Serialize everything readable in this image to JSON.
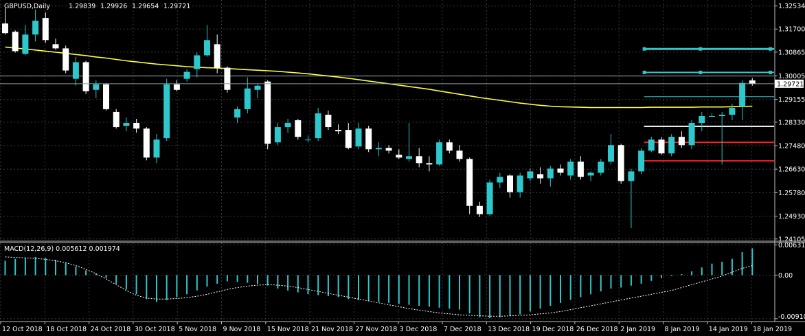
{
  "chart_data": [
    {
      "type": "candlestick",
      "title": "GBPUSD,Daily",
      "quote": [
        "1.29839",
        "1.29926",
        "1.29654",
        "1.29721"
      ],
      "current_price": 1.29721,
      "current_price_label": "1.29721",
      "y_ticks": [
        1.32534,
        1.317,
        1.30865,
        1.30005,
        1.29155,
        1.2833,
        1.2748,
        1.2663,
        1.2578,
        1.2493,
        1.24105
      ],
      "y_tick_labels": [
        "1.32534",
        "1.31700",
        "1.30865",
        "1.30005",
        "1.29155",
        "1.28330",
        "1.27480",
        "1.26630",
        "1.25780",
        "1.24930",
        "1.24105"
      ],
      "ylim": [
        1.2405,
        1.3275
      ],
      "grid": true,
      "colors": {
        "bull": "#2cc8cc",
        "bear": "#ffffff",
        "ma": "#ffff40",
        "axis": "#c0c0c0",
        "grid": "#3a3a3a"
      },
      "ohlc": [
        [
          1.319,
          1.3245,
          1.315,
          1.3155
        ],
        [
          1.316,
          1.3165,
          1.3085,
          1.309
        ],
        [
          1.308,
          1.3185,
          1.3075,
          1.315
        ],
        [
          1.315,
          1.324,
          1.3125,
          1.32
        ],
        [
          1.321,
          1.323,
          1.312,
          1.313
        ],
        [
          1.3115,
          1.3135,
          1.3095,
          1.31
        ],
        [
          1.31,
          1.311,
          1.301,
          1.302
        ],
        [
          1.299,
          1.307,
          1.2965,
          1.305
        ],
        [
          1.305,
          1.3055,
          1.2935,
          1.2945
        ],
        [
          1.295,
          1.2985,
          1.292,
          1.297
        ],
        [
          1.297,
          1.2975,
          1.2875,
          1.288
        ],
        [
          1.287,
          1.288,
          1.281,
          1.2815
        ],
        [
          1.282,
          1.285,
          1.28,
          1.283
        ],
        [
          1.283,
          1.2845,
          1.2795,
          1.281
        ],
        [
          1.281,
          1.2815,
          1.2695,
          1.2705
        ],
        [
          1.2705,
          1.279,
          1.2685,
          1.277
        ],
        [
          1.2775,
          1.299,
          1.2765,
          1.297
        ],
        [
          1.297,
          1.2985,
          1.2945,
          1.295
        ],
        [
          1.299,
          1.3025,
          1.298,
          1.3015
        ],
        [
          1.3025,
          1.3085,
          1.2995,
          1.3075
        ],
        [
          1.3075,
          1.3185,
          1.307,
          1.313
        ],
        [
          1.3115,
          1.315,
          1.301,
          1.303
        ],
        [
          1.303,
          1.3035,
          1.294,
          1.295
        ],
        [
          1.285,
          1.289,
          1.283,
          1.288
        ],
        [
          1.288,
          1.2995,
          1.2865,
          1.2955
        ],
        [
          1.295,
          1.297,
          1.292,
          1.2965
        ],
        [
          1.298,
          1.2985,
          1.2735,
          1.2755
        ],
        [
          1.276,
          1.283,
          1.275,
          1.2815
        ],
        [
          1.2815,
          1.2845,
          1.2795,
          1.283
        ],
        [
          1.284,
          1.2845,
          1.277,
          1.278
        ],
        [
          1.277,
          1.2785,
          1.276,
          1.277
        ],
        [
          1.2775,
          1.2885,
          1.2765,
          1.2865
        ],
        [
          1.286,
          1.2875,
          1.2805,
          1.2815
        ],
        [
          1.2805,
          1.2825,
          1.279,
          1.28
        ],
        [
          1.2805,
          1.283,
          1.2735,
          1.274
        ],
        [
          1.2745,
          1.283,
          1.2735,
          1.281
        ],
        [
          1.281,
          1.282,
          1.2725,
          1.2735
        ],
        [
          1.2735,
          1.276,
          1.271,
          1.274
        ],
        [
          1.274,
          1.275,
          1.272,
          1.273
        ],
        [
          1.2715,
          1.2735,
          1.27,
          1.2705
        ],
        [
          1.27,
          1.283,
          1.269,
          1.271
        ],
        [
          1.271,
          1.274,
          1.267,
          1.2685
        ],
        [
          1.2685,
          1.271,
          1.2655,
          1.268
        ],
        [
          1.268,
          1.277,
          1.2675,
          1.276
        ],
        [
          1.276,
          1.277,
          1.272,
          1.273
        ],
        [
          1.273,
          1.275,
          1.269,
          1.27
        ],
        [
          1.27,
          1.2705,
          1.25,
          1.253
        ],
        [
          1.253,
          1.2545,
          1.249,
          1.25
        ],
        [
          1.25,
          1.2625,
          1.2495,
          1.2615
        ],
        [
          1.2615,
          1.265,
          1.2595,
          1.2635
        ],
        [
          1.264,
          1.2645,
          1.256,
          1.258
        ],
        [
          1.258,
          1.265,
          1.256,
          1.264
        ],
        [
          1.263,
          1.2665,
          1.262,
          1.2655
        ],
        [
          1.2645,
          1.267,
          1.261,
          1.263
        ],
        [
          1.263,
          1.2675,
          1.26,
          1.2665
        ],
        [
          1.2665,
          1.268,
          1.264,
          1.265
        ],
        [
          1.264,
          1.27,
          1.2625,
          1.269
        ],
        [
          1.269,
          1.271,
          1.2625,
          1.2635
        ],
        [
          1.264,
          1.2655,
          1.262,
          1.265
        ],
        [
          1.265,
          1.27,
          1.264,
          1.269
        ],
        [
          1.269,
          1.279,
          1.268,
          1.275
        ],
        [
          1.275,
          1.2755,
          1.261,
          1.262
        ],
        [
          1.262,
          1.2665,
          1.245,
          1.2655
        ],
        [
          1.2655,
          1.274,
          1.2645,
          1.273
        ],
        [
          1.273,
          1.278,
          1.2725,
          1.277
        ],
        [
          1.277,
          1.278,
          1.2715,
          1.272
        ],
        [
          1.272,
          1.279,
          1.271,
          1.278
        ],
        [
          1.278,
          1.28,
          1.274,
          1.275
        ],
        [
          1.275,
          1.284,
          1.2735,
          1.283
        ],
        [
          1.283,
          1.287,
          1.28,
          1.2855
        ],
        [
          1.2855,
          1.2865,
          1.2855,
          1.2855
        ],
        [
          1.2855,
          1.287,
          1.268,
          1.286
        ],
        [
          1.286,
          1.29,
          1.284,
          1.2885
        ],
        [
          1.289,
          1.2985,
          1.284,
          1.2975
        ],
        [
          1.2984,
          1.2993,
          1.2965,
          1.2972
        ]
      ],
      "moving_average": [
        1.3105,
        1.3101,
        1.3098,
        1.3094,
        1.309,
        1.3086,
        1.3082,
        1.3078,
        1.3074,
        1.3069,
        1.3065,
        1.306,
        1.3055,
        1.3051,
        1.3047,
        1.3043,
        1.304,
        1.3037,
        1.3034,
        1.3032,
        1.303,
        1.3029,
        1.3027,
        1.3025,
        1.3023,
        1.3021,
        1.3019,
        1.3017,
        1.3014,
        1.3011,
        1.3008,
        1.3004,
        1.3,
        1.2996,
        1.2992,
        1.2987,
        1.2982,
        1.2977,
        1.2972,
        1.2967,
        1.2962,
        1.2957,
        1.2952,
        1.2946,
        1.294,
        1.2934,
        1.2928,
        1.2922,
        1.2917,
        1.2912,
        1.2907,
        1.2902,
        1.2898,
        1.2894,
        1.2891,
        1.2889,
        1.2888,
        1.2887,
        1.2886,
        1.2886,
        1.2886,
        1.2886,
        1.2886,
        1.2886,
        1.2887,
        1.2887,
        1.2887,
        1.2887,
        1.2887,
        1.2888,
        1.2888,
        1.2888,
        1.2889,
        1.289,
        1.2891
      ],
      "horizontal_levels": [
        {
          "price": 1.3098,
          "color": "#2cc8cc",
          "width": 3,
          "from_index": 63
        },
        {
          "price": 1.3013,
          "color": "#2cc8cc",
          "width": 2,
          "from_index": 63
        },
        {
          "price": 1.3,
          "color": "#9aa8ad",
          "width": 1,
          "from_index": 0
        },
        {
          "price": 1.2925,
          "color": "#2cc8cc",
          "width": 1,
          "from_index": 63
        },
        {
          "price": 1.2818,
          "color": "#ffffff",
          "width": 2,
          "from_index": 63
        },
        {
          "price": 1.276,
          "color": "#ff2020",
          "width": 2,
          "from_index": 63
        },
        {
          "price": 1.2693,
          "color": "#ff2020",
          "width": 2,
          "from_index": 63
        }
      ]
    },
    {
      "type": "bar",
      "title": "MACD(12,26,9) 0.005612 0.001974",
      "y_ticks": [
        0.006312,
        0.0,
        -0.009103
      ],
      "y_tick_labels": [
        "0.006312",
        "0.00",
        "-0.009103"
      ],
      "ylim": [
        -0.0097,
        0.0068
      ],
      "colors": {
        "histogram": "#2cc8cc",
        "signal": "#ffffff"
      },
      "histogram": [
        0.003,
        0.0034,
        0.0036,
        0.0038,
        0.0036,
        0.0032,
        0.0025,
        0.0018,
        0.001,
        0.0003,
        -0.0006,
        -0.0018,
        -0.003,
        -0.004,
        -0.005,
        -0.0056,
        -0.0052,
        -0.0046,
        -0.004,
        -0.0032,
        -0.0024,
        -0.0018,
        -0.0013,
        -0.0014,
        -0.0016,
        -0.0018,
        -0.0022,
        -0.0028,
        -0.0032,
        -0.0036,
        -0.004,
        -0.0042,
        -0.0044,
        -0.0046,
        -0.005,
        -0.0052,
        -0.0054,
        -0.0056,
        -0.0058,
        -0.006,
        -0.0062,
        -0.0064,
        -0.0066,
        -0.0068,
        -0.007,
        -0.0072,
        -0.008,
        -0.0088,
        -0.009,
        -0.0088,
        -0.0086,
        -0.0082,
        -0.0076,
        -0.007,
        -0.0064,
        -0.0058,
        -0.0052,
        -0.0046,
        -0.004,
        -0.0034,
        -0.0028,
        -0.0026,
        -0.0022,
        -0.0018,
        -0.0012,
        -0.0006,
        -0.0002,
        0.0002,
        0.0008,
        0.0016,
        0.0024,
        0.0028,
        0.0034,
        0.0048,
        0.0056
      ],
      "signal": [
        0.0038,
        0.0037,
        0.0036,
        0.0035,
        0.0033,
        0.003,
        0.0026,
        0.002,
        0.0012,
        0.0003,
        -0.0008,
        -0.002,
        -0.0032,
        -0.0042,
        -0.0048,
        -0.005,
        -0.005,
        -0.0049,
        -0.0047,
        -0.0044,
        -0.004,
        -0.0035,
        -0.003,
        -0.0026,
        -0.0023,
        -0.0021,
        -0.002,
        -0.0021,
        -0.0023,
        -0.0026,
        -0.003,
        -0.0034,
        -0.0038,
        -0.0042,
        -0.0046,
        -0.005,
        -0.0054,
        -0.0058,
        -0.0062,
        -0.0066,
        -0.007,
        -0.0073,
        -0.0076,
        -0.0079,
        -0.0081,
        -0.0083,
        -0.0084,
        -0.0085,
        -0.0086,
        -0.0086,
        -0.0085,
        -0.0084,
        -0.0083,
        -0.0081,
        -0.0079,
        -0.0076,
        -0.0072,
        -0.0068,
        -0.0064,
        -0.006,
        -0.0056,
        -0.0052,
        -0.0048,
        -0.0044,
        -0.004,
        -0.0036,
        -0.0032,
        -0.0026,
        -0.002,
        -0.0014,
        -0.0008,
        -0.0002,
        0.0006,
        0.0014,
        0.002
      ]
    }
  ],
  "x_axis_labels": [
    "12 Oct 2018",
    "18 Oct 2018",
    "24 Oct 2018",
    "30 Oct 2018",
    "5 Nov 2018",
    "9 Nov 2018",
    "15 Nov 2018",
    "21 Nov 2018",
    "27 Nov 2018",
    "3 Dec 2018",
    "7 Dec 2018",
    "13 Dec 2018",
    "19 Dec 2018",
    "26 Dec 2018",
    "2 Jan 2019",
    "8 Jan 2019",
    "14 Jan 2019",
    "18 Jan 2019"
  ]
}
